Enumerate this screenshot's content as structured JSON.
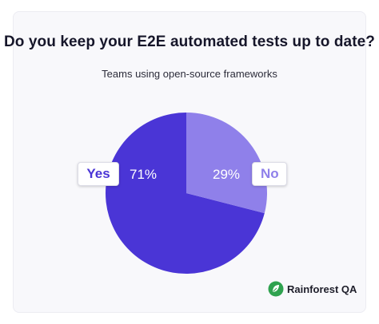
{
  "chart_data": {
    "type": "pie",
    "title": "Do you keep your E2E automated tests up to date?",
    "subtitle": "Teams using open-source frameworks",
    "slices": [
      {
        "label": "Yes",
        "value": 71,
        "display": "71%",
        "color": "#4a35d6"
      },
      {
        "label": "No",
        "value": 29,
        "display": "29%",
        "color": "#8f80ea"
      }
    ]
  },
  "brand": {
    "name": "Rainforest QA",
    "color": "#2fa24f",
    "icon": "leaf-logo-icon"
  }
}
